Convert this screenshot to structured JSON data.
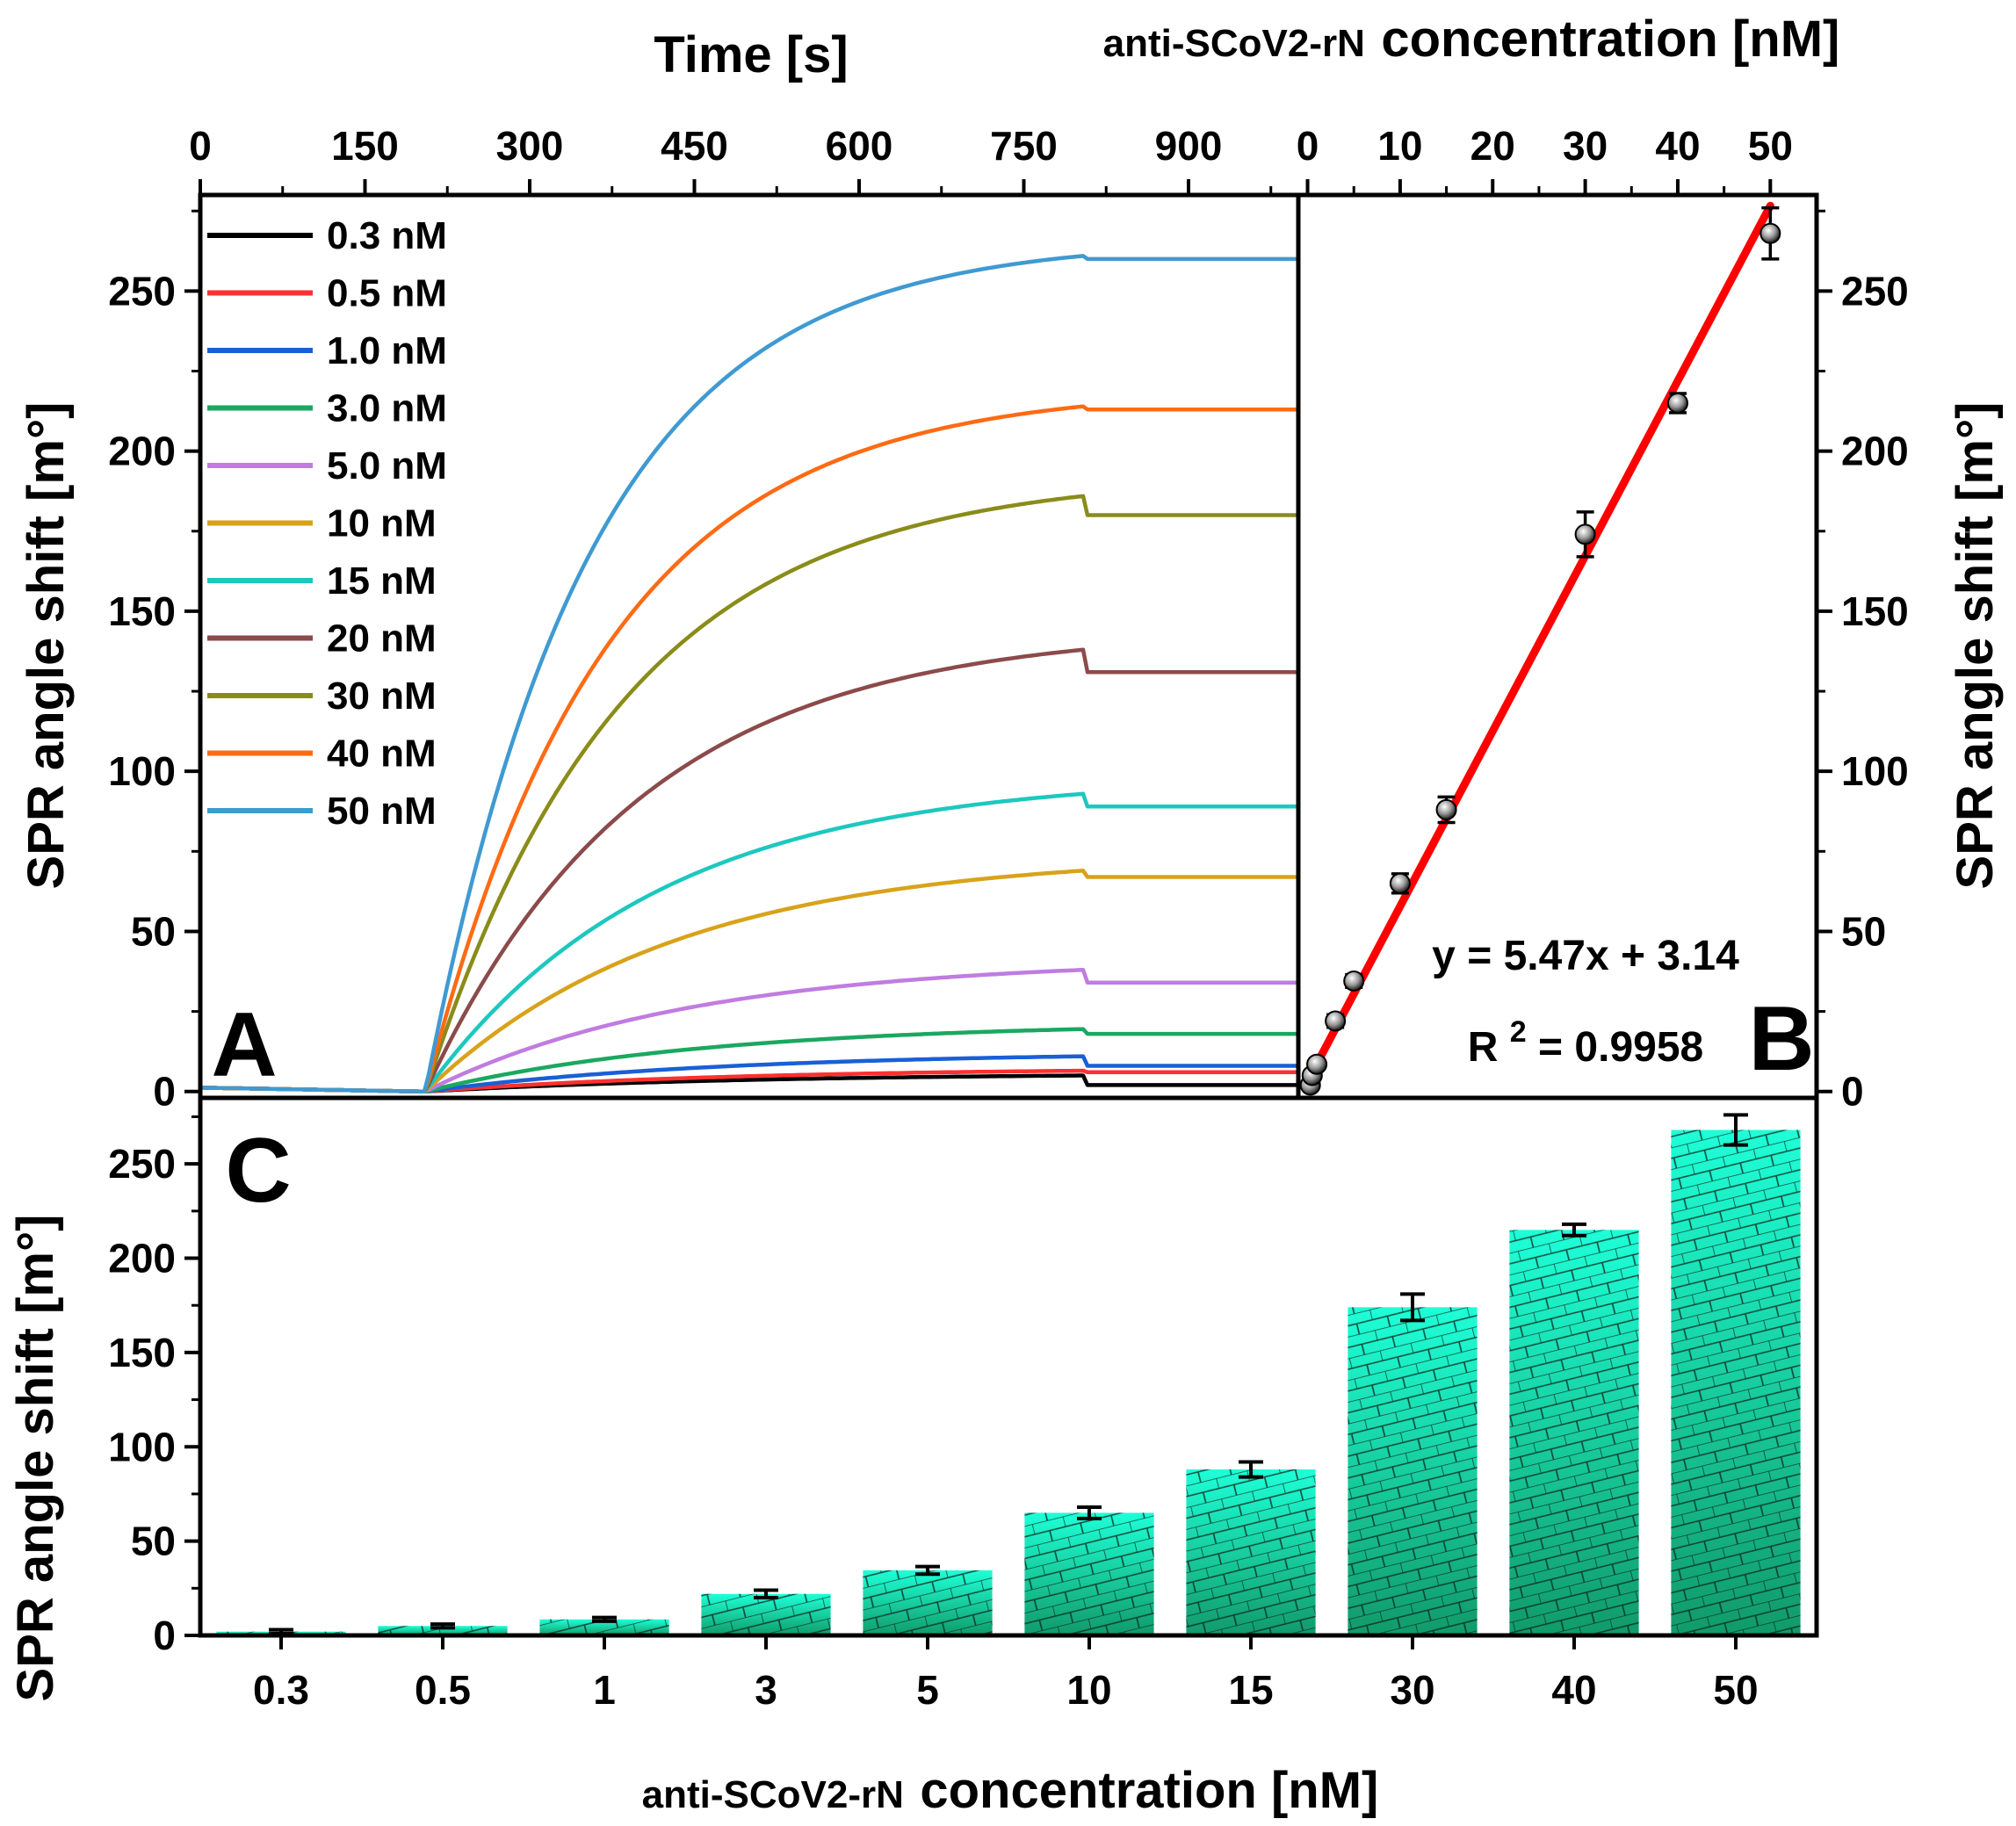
{
  "chart_data": [
    {
      "panel": "A",
      "type": "line",
      "xlabel": "Time [s]",
      "ylabel": "SPR angle shift [m°]",
      "xlim": [
        0,
        1000
      ],
      "ylim": [
        -2,
        280
      ],
      "xticks": [
        0,
        150,
        300,
        450,
        600,
        750,
        900
      ],
      "yticks": [
        0,
        50,
        100,
        150,
        200,
        250
      ],
      "legend_position": "top-left",
      "injection_start_s": 205,
      "injection_end_s": 805,
      "series": [
        {
          "name": "0.3 nM",
          "color": "#000000",
          "plateau": 5,
          "final": 2
        },
        {
          "name": "0.5 nM",
          "color": "#ff3030",
          "plateau": 6.5,
          "final": 6
        },
        {
          "name": "1.0 nM",
          "color": "#1a5fd6",
          "plateau": 11,
          "final": 8
        },
        {
          "name": "3.0 nM",
          "color": "#1aa860",
          "plateau": 19.5,
          "final": 18
        },
        {
          "name": "5.0 nM",
          "color": "#c07ce0",
          "plateau": 38,
          "final": 34
        },
        {
          "name": "10 nM",
          "color": "#d8a21a",
          "plateau": 69,
          "final": 67
        },
        {
          "name": "15 nM",
          "color": "#1cc8c0",
          "plateau": 93,
          "final": 89
        },
        {
          "name": "20 nM",
          "color": "#8c4a4a",
          "plateau": 138,
          "final": 131
        },
        {
          "name": "30 nM",
          "color": "#8a8c1a",
          "plateau": 186,
          "final": 180
        },
        {
          "name": "40 nM",
          "color": "#ff6a14",
          "plateau": 214,
          "final": 213
        },
        {
          "name": "50 nM",
          "color": "#3f9ad2",
          "plateau": 261,
          "final": 260
        }
      ],
      "panel_label": "A"
    },
    {
      "panel": "B",
      "type": "scatter",
      "xlabel": "anti-SCoV2-rN",
      "xlabel_suffix": "concentration [nM]",
      "ylabel": "SPR angle shift [m°]",
      "xlim": [
        -1,
        55
      ],
      "ylim": [
        -2,
        280
      ],
      "xticks": [
        0,
        10,
        20,
        30,
        40,
        50
      ],
      "yticks": [
        0,
        50,
        100,
        150,
        200,
        250
      ],
      "points": [
        {
          "x": 0.3,
          "y": 2,
          "err": 1
        },
        {
          "x": 0.5,
          "y": 5,
          "err": 1
        },
        {
          "x": 1,
          "y": 8.5,
          "err": 1
        },
        {
          "x": 3,
          "y": 22,
          "err": 2
        },
        {
          "x": 5,
          "y": 34.5,
          "err": 2
        },
        {
          "x": 10,
          "y": 65,
          "err": 3
        },
        {
          "x": 15,
          "y": 88,
          "err": 4
        },
        {
          "x": 30,
          "y": 174,
          "err": 7
        },
        {
          "x": 40,
          "y": 215,
          "err": 3
        },
        {
          "x": 50,
          "y": 268,
          "err": 8
        }
      ],
      "fit": {
        "slope": 5.47,
        "intercept": 3.14,
        "color": "#ff0000"
      },
      "fit_equation": "y = 5.47x + 3.14",
      "r2_prefix": "R",
      "r2_sup": "2",
      "r2_suffix": " = 0.9958",
      "panel_label": "B"
    },
    {
      "panel": "C",
      "type": "bar",
      "xlabel": "anti-SCoV2-rN",
      "xlabel_suffix": "concentration [nM]",
      "ylabel": "SPR angle shift [m°]",
      "ylim": [
        0,
        285
      ],
      "yticks": [
        0,
        50,
        100,
        150,
        200,
        250
      ],
      "categories": [
        "0.3",
        "0.5",
        "1",
        "3",
        "5",
        "10",
        "15",
        "30",
        "40",
        "50"
      ],
      "values": [
        2,
        5,
        8.5,
        22,
        34.5,
        65,
        88,
        174,
        215,
        268
      ],
      "errors": [
        1,
        1,
        1,
        2,
        2,
        3,
        4,
        7,
        3,
        8
      ],
      "bar_color_top": "#1effd8",
      "bar_color_bottom": "#119a6a",
      "panel_label": "C"
    }
  ]
}
